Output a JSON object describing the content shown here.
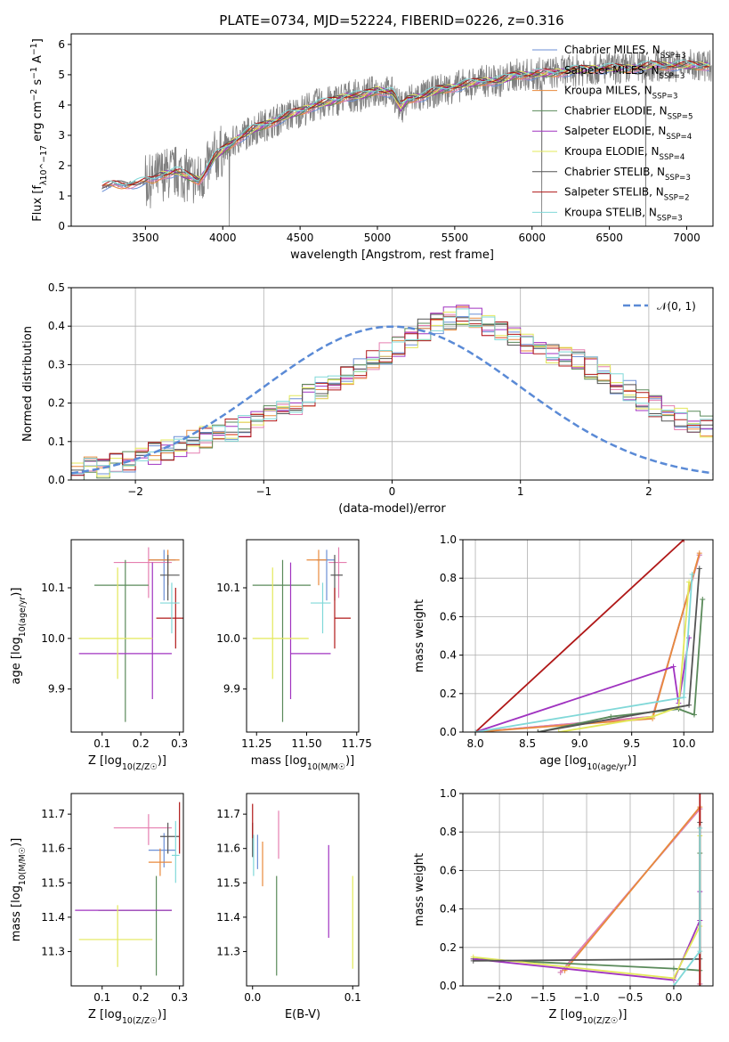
{
  "figure_title": "PLATE=0734, MJD=52224, FIBERID=0226, z=0.316",
  "colors": {
    "Chabrier MILES": "#6b8fd6",
    "Salpeter MILES": "#e57fb0",
    "Kroupa MILES": "#e88a3c",
    "Chabrier ELODIE": "#5a8a5a",
    "Salpeter ELODIE": "#a033c0",
    "Kroupa ELODIE": "#e3e85a",
    "Chabrier STELIB": "#555555",
    "Salpeter STELIB": "#b01818",
    "Kroupa STELIB": "#80d8d8",
    "spectrum": "#808080",
    "gauss": "#5a8ad6",
    "grid": "#b0b0b0"
  },
  "chart_data": [
    {
      "id": "spectrum",
      "type": "line",
      "title": "PLATE=0734, MJD=52224, FIBERID=0226, z=0.316",
      "xlabel": "wavelength [Angstrom, rest frame]",
      "ylabel": "Flux [f_λ 10^-17 erg cm^-2 s^-1 A^-1]",
      "xlim": [
        3020,
        7170
      ],
      "ylim": [
        0,
        6.35
      ],
      "xticks": [
        "3500",
        "4000",
        "4500",
        "5000",
        "5500",
        "6000",
        "6500",
        "7000"
      ],
      "yticks": [
        "0",
        "1",
        "2",
        "3",
        "4",
        "5",
        "6"
      ],
      "grid": false,
      "legend_position": "top-right",
      "legend": [
        {
          "label": "Chabrier MILES, N_SSP=3",
          "series": "Chabrier MILES"
        },
        {
          "label": "Salpeter MILES, N_SSP=3",
          "series": "Salpeter MILES"
        },
        {
          "label": "Kroupa MILES, N_SSP=3",
          "series": "Kroupa MILES"
        },
        {
          "label": "Chabrier ELODIE, N_SSP=5",
          "series": "Chabrier ELODIE"
        },
        {
          "label": "Salpeter ELODIE, N_SSP=4",
          "series": "Salpeter ELODIE"
        },
        {
          "label": "Kroupa ELODIE, N_SSP=4",
          "series": "Kroupa ELODIE"
        },
        {
          "label": "Chabrier STELIB, N_SSP=3",
          "series": "Chabrier STELIB"
        },
        {
          "label": "Salpeter STELIB, N_SSP=2",
          "series": "Salpeter STELIB"
        },
        {
          "label": "Kroupa STELIB, N_SSP=3",
          "series": "Kroupa STELIB"
        }
      ],
      "continuum": {
        "x": [
          3220,
          3300,
          3400,
          3500,
          3550,
          3600,
          3700,
          3800,
          3850,
          3900,
          3950,
          4000,
          4100,
          4200,
          4300,
          4400,
          4500,
          4600,
          4700,
          4800,
          4900,
          5000,
          5100,
          5150,
          5200,
          5300,
          5400,
          5500,
          5600,
          5700,
          5800,
          5900,
          6000,
          6200,
          6400,
          6600,
          6800,
          7000,
          7150
        ],
        "y": [
          1.3,
          1.35,
          1.4,
          1.45,
          1.5,
          1.7,
          1.8,
          1.6,
          1.5,
          1.9,
          2.3,
          2.5,
          2.9,
          3.2,
          3.4,
          3.6,
          3.8,
          4.0,
          4.1,
          4.3,
          4.3,
          4.5,
          4.4,
          3.9,
          4.2,
          4.3,
          4.5,
          4.6,
          4.7,
          4.8,
          4.8,
          5.0,
          5.0,
          5.1,
          5.2,
          5.2,
          5.3,
          5.3,
          5.3
        ]
      }
    },
    {
      "id": "residuals",
      "type": "line",
      "xlabel": "(data-model)/error",
      "ylabel": "Normed distribution",
      "xlim": [
        -2.5,
        2.5
      ],
      "ylim": [
        0,
        0.5
      ],
      "xticks": [
        "−2",
        "−1",
        "0",
        "1",
        "2"
      ],
      "yticks": [
        "0.0",
        "0.1",
        "0.2",
        "0.3",
        "0.4",
        "0.5"
      ],
      "grid": true,
      "legend_position": "top-right",
      "legend": [
        {
          "label": "𝒩(0, 1)",
          "series": "gauss"
        }
      ],
      "bin_width": 0.1,
      "bins_start": -2.5,
      "base_hist": [
        0.02,
        0.03,
        0.03,
        0.04,
        0.05,
        0.06,
        0.07,
        0.08,
        0.09,
        0.1,
        0.11,
        0.12,
        0.13,
        0.14,
        0.16,
        0.17,
        0.18,
        0.2,
        0.22,
        0.24,
        0.26,
        0.27,
        0.29,
        0.31,
        0.33,
        0.35,
        0.37,
        0.39,
        0.41,
        0.42,
        0.43,
        0.42,
        0.4,
        0.39,
        0.37,
        0.35,
        0.34,
        0.33,
        0.32,
        0.31,
        0.29,
        0.27,
        0.25,
        0.23,
        0.21,
        0.19,
        0.17,
        0.16,
        0.15,
        0.14,
        0.12,
        0.11,
        0.1,
        0.09,
        0.08,
        0.07,
        0.06,
        0.05,
        0.05,
        0.04,
        0.04,
        0.03,
        0.03,
        0.03,
        0.02,
        0.02,
        0.02,
        0.02,
        0.02,
        0.02
      ]
    },
    {
      "id": "age-vs-Z",
      "type": "scatter",
      "xlabel": "Z [log10(Z/Z☉)]",
      "ylabel": "age [log10(age/yr)]",
      "xlim": [
        0.02,
        0.31
      ],
      "ylim": [
        9.815,
        10.195
      ],
      "xticks": [
        "0.1",
        "0.2",
        "0.3"
      ],
      "yticks": [
        "9.9",
        "10.0",
        "10.1"
      ],
      "points": [
        {
          "series": "Chabrier MILES",
          "x": 0.26,
          "y": 10.155,
          "xerr": [
            0.04,
            0.03
          ],
          "yerr": [
            0.08,
            0.02
          ]
        },
        {
          "series": "Salpeter MILES",
          "x": 0.22,
          "y": 10.15,
          "xerr": [
            0.09,
            0.06
          ],
          "yerr": [
            0.07,
            0.03
          ]
        },
        {
          "series": "Kroupa MILES",
          "x": 0.27,
          "y": 10.155,
          "xerr": [
            0.05,
            0.03
          ],
          "yerr": [
            0.05,
            0.02
          ]
        },
        {
          "series": "Chabrier ELODIE",
          "x": 0.16,
          "y": 10.105,
          "xerr": [
            0.08,
            0.06
          ],
          "yerr": [
            0.27,
            0.05
          ]
        },
        {
          "series": "Salpeter ELODIE",
          "x": 0.23,
          "y": 9.97,
          "xerr": [
            0.19,
            0.05
          ],
          "yerr": [
            0.09,
            0.18
          ]
        },
        {
          "series": "Kroupa ELODIE",
          "x": 0.14,
          "y": 10.0,
          "xerr": [
            0.1,
            0.09
          ],
          "yerr": [
            0.08,
            0.14
          ]
        },
        {
          "series": "Chabrier STELIB",
          "x": 0.27,
          "y": 10.125,
          "xerr": [
            0.02,
            0.03
          ],
          "yerr": [
            0.05,
            0.04
          ]
        },
        {
          "series": "Salpeter STELIB",
          "x": 0.29,
          "y": 10.04,
          "xerr": [
            0.05,
            0.03
          ],
          "yerr": [
            0.06,
            0.06
          ]
        },
        {
          "series": "Kroupa STELIB",
          "x": 0.28,
          "y": 10.07,
          "xerr": [
            0.03,
            0.02
          ],
          "yerr": [
            0.06,
            0.04
          ]
        }
      ]
    },
    {
      "id": "age-vs-mass",
      "type": "scatter",
      "xlabel": "mass [log10(M/M☉)]",
      "ylabel": "",
      "xlim": [
        11.2,
        11.76
      ],
      "ylim": [
        9.815,
        10.195
      ],
      "xticks": [
        "11.25",
        "11.50",
        "11.75"
      ],
      "yticks": [
        "9.9",
        "10.0",
        "10.1"
      ],
      "points": [
        {
          "series": "Chabrier MILES",
          "x": 11.6,
          "y": 10.155,
          "xerr": [
            0.05,
            0.04
          ],
          "yerr": [
            0.08,
            0.02
          ]
        },
        {
          "series": "Salpeter MILES",
          "x": 11.66,
          "y": 10.15,
          "xerr": [
            0.05,
            0.04
          ],
          "yerr": [
            0.07,
            0.03
          ]
        },
        {
          "series": "Kroupa MILES",
          "x": 11.56,
          "y": 10.155,
          "xerr": [
            0.06,
            0.04
          ],
          "yerr": [
            0.05,
            0.02
          ]
        },
        {
          "series": "Chabrier ELODIE",
          "x": 11.38,
          "y": 10.105,
          "xerr": [
            0.15,
            0.14
          ],
          "yerr": [
            0.27,
            0.05
          ]
        },
        {
          "series": "Salpeter ELODIE",
          "x": 11.42,
          "y": 9.97,
          "xerr": [
            0.0,
            0.2
          ],
          "yerr": [
            0.09,
            0.18
          ]
        },
        {
          "series": "Kroupa ELODIE",
          "x": 11.33,
          "y": 10.0,
          "xerr": [
            0.1,
            0.18
          ],
          "yerr": [
            0.08,
            0.14
          ]
        },
        {
          "series": "Chabrier STELIB",
          "x": 11.64,
          "y": 10.125,
          "xerr": [
            0.02,
            0.04
          ],
          "yerr": [
            0.05,
            0.04
          ]
        },
        {
          "series": "Salpeter STELIB",
          "x": 11.64,
          "y": 10.04,
          "xerr": [
            0.0,
            0.08
          ],
          "yerr": [
            0.06,
            0.06
          ]
        },
        {
          "series": "Kroupa STELIB",
          "x": 11.58,
          "y": 10.07,
          "xerr": [
            0.06,
            0.04
          ],
          "yerr": [
            0.06,
            0.04
          ]
        }
      ]
    },
    {
      "id": "weight-vs-age",
      "type": "line",
      "xlabel": "age [log10(age/yr)]",
      "ylabel": "mass weight",
      "xlim": [
        7.88,
        10.28
      ],
      "ylim": [
        0,
        1.0
      ],
      "xticks": [
        "8.0",
        "8.5",
        "9.0",
        "9.5",
        "10.0"
      ],
      "yticks": [
        "0.0",
        "0.2",
        "0.4",
        "0.6",
        "0.8",
        "1.0"
      ],
      "grid": true,
      "series": [
        {
          "name": "Chabrier MILES",
          "x": [
            8.0,
            9.7,
            10.15
          ],
          "y": [
            0.0,
            0.08,
            0.92
          ]
        },
        {
          "name": "Salpeter MILES",
          "x": [
            8.0,
            9.7,
            10.15
          ],
          "y": [
            0.0,
            0.08,
            0.92
          ]
        },
        {
          "name": "Kroupa MILES",
          "x": [
            8.0,
            9.7,
            10.15
          ],
          "y": [
            0.0,
            0.07,
            0.93
          ]
        },
        {
          "name": "Chabrier ELODIE",
          "x": [
            8.6,
            9.3,
            9.95,
            10.1,
            10.18
          ],
          "y": [
            0.0,
            0.08,
            0.12,
            0.09,
            0.69
          ]
        },
        {
          "name": "Salpeter ELODIE",
          "x": [
            8.0,
            9.9,
            9.95,
            10.05
          ],
          "y": [
            0.0,
            0.34,
            0.15,
            0.49
          ]
        },
        {
          "name": "Kroupa ELODIE",
          "x": [
            8.8,
            9.7,
            9.95,
            10.05
          ],
          "y": [
            0.0,
            0.08,
            0.13,
            0.78
          ]
        },
        {
          "name": "Chabrier STELIB",
          "x": [
            8.6,
            10.05,
            10.15
          ],
          "y": [
            0.0,
            0.14,
            0.85
          ]
        },
        {
          "name": "Salpeter STELIB",
          "x": [
            8.0,
            10.0
          ],
          "y": [
            0.0,
            1.0
          ]
        },
        {
          "name": "Kroupa STELIB",
          "x": [
            8.0,
            10.0,
            10.08
          ],
          "y": [
            0.0,
            0.18,
            0.82
          ]
        }
      ]
    },
    {
      "id": "mass-vs-Z",
      "type": "scatter",
      "xlabel": "Z [log10(Z/Z☉)]",
      "ylabel": "mass [log10(M/M☉)]",
      "xlim": [
        0.02,
        0.31
      ],
      "ylim": [
        11.2,
        11.76
      ],
      "xticks": [
        "0.1",
        "0.2",
        "0.3"
      ],
      "yticks": [
        "11.3",
        "11.4",
        "11.5",
        "11.6",
        "11.7"
      ],
      "points": [
        {
          "series": "Chabrier MILES",
          "x": 0.26,
          "y": 11.595,
          "xerr": [
            0.04,
            0.03
          ],
          "yerr": [
            0.05,
            0.05
          ]
        },
        {
          "series": "Salpeter MILES",
          "x": 0.22,
          "y": 11.66,
          "xerr": [
            0.09,
            0.06
          ],
          "yerr": [
            0.05,
            0.04
          ]
        },
        {
          "series": "Kroupa MILES",
          "x": 0.25,
          "y": 11.56,
          "xerr": [
            0.03,
            0.03
          ],
          "yerr": [
            0.04,
            0.04
          ]
        },
        {
          "series": "Chabrier ELODIE",
          "x": 0.24,
          "y": 11.42,
          "xerr": [
            0.15,
            0.04
          ],
          "yerr": [
            0.19,
            0.1
          ]
        },
        {
          "series": "Salpeter ELODIE",
          "x": 0.13,
          "y": 11.42,
          "xerr": [
            0.1,
            0.15
          ],
          "yerr": [
            0.0,
            0.0
          ]
        },
        {
          "series": "Kroupa ELODIE",
          "x": 0.14,
          "y": 11.335,
          "xerr": [
            0.1,
            0.09
          ],
          "yerr": [
            0.08,
            0.1
          ]
        },
        {
          "series": "Chabrier STELIB",
          "x": 0.27,
          "y": 11.635,
          "xerr": [
            0.02,
            0.03
          ],
          "yerr": [
            0.05,
            0.04
          ]
        },
        {
          "series": "Salpeter STELIB",
          "x": 0.3,
          "y": 11.635,
          "xerr": [
            0.0,
            0.0
          ],
          "yerr": [
            0.05,
            0.1
          ]
        },
        {
          "series": "Kroupa STELIB",
          "x": 0.29,
          "y": 11.58,
          "xerr": [
            0.01,
            0.01
          ],
          "yerr": [
            0.08,
            0.1
          ]
        }
      ]
    },
    {
      "id": "mass-vs-EBV",
      "type": "scatter",
      "xlabel": "E(B-V)",
      "ylabel": "",
      "xlim": [
        -0.006,
        0.106
      ],
      "ylim": [
        11.2,
        11.76
      ],
      "xticks": [
        "0.0",
        "0.1"
      ],
      "yticks": [
        "11.3",
        "11.4",
        "11.5",
        "11.6",
        "11.7"
      ],
      "points": [
        {
          "series": "Chabrier MILES",
          "x": 0.005,
          "y": 11.59,
          "yerr": [
            0.05,
            0.05
          ]
        },
        {
          "series": "Salpeter MILES",
          "x": 0.026,
          "y": 11.66,
          "yerr": [
            0.09,
            0.05
          ]
        },
        {
          "series": "Kroupa MILES",
          "x": 0.01,
          "y": 11.56,
          "yerr": [
            0.07,
            0.06
          ]
        },
        {
          "series": "Chabrier ELODIE",
          "x": 0.024,
          "y": 11.42,
          "yerr": [
            0.19,
            0.1
          ]
        },
        {
          "series": "Salpeter ELODIE",
          "x": 0.076,
          "y": 11.47,
          "yerr": [
            0.13,
            0.14
          ]
        },
        {
          "series": "Kroupa ELODIE",
          "x": 0.1,
          "y": 11.38,
          "yerr": [
            0.13,
            0.14
          ]
        },
        {
          "series": "Chabrier STELIB",
          "x": 0.0,
          "y": 11.635,
          "yerr": [
            0.06,
            0.04
          ]
        },
        {
          "series": "Salpeter STELIB",
          "x": 0.0,
          "y": 11.69,
          "yerr": [
            0.06,
            0.04
          ]
        },
        {
          "series": "Kroupa STELIB",
          "x": 0.001,
          "y": 11.58,
          "yerr": [
            0.06,
            0.06
          ]
        }
      ]
    },
    {
      "id": "weight-vs-Z",
      "type": "line",
      "xlabel": "Z [log10(Z/Z☉)]",
      "ylabel": "mass weight",
      "xlim": [
        -2.42,
        0.45
      ],
      "ylim": [
        0,
        1.0
      ],
      "xticks": [
        "−2.0",
        "−1.5",
        "−1.0",
        "−0.5",
        "0.0"
      ],
      "yticks": [
        "0.0",
        "0.2",
        "0.4",
        "0.6",
        "0.8",
        "1.0"
      ],
      "grid": true,
      "series": [
        {
          "name": "Chabrier MILES",
          "x": [
            -1.3,
            0.3,
            0.3
          ],
          "y": [
            0.07,
            0.92,
            0.01
          ]
        },
        {
          "name": "Salpeter MILES",
          "x": [
            -1.3,
            0.3,
            0.3
          ],
          "y": [
            0.07,
            0.92,
            0.01
          ]
        },
        {
          "name": "Kroupa MILES",
          "x": [
            -1.25,
            0.3,
            0.3
          ],
          "y": [
            0.08,
            0.93,
            0.0
          ]
        },
        {
          "name": "Chabrier ELODIE",
          "x": [
            -2.3,
            0.0,
            0.3,
            0.3
          ],
          "y": [
            0.14,
            0.09,
            0.08,
            0.69
          ]
        },
        {
          "name": "Salpeter ELODIE",
          "x": [
            -2.3,
            0.0,
            0.3,
            0.3
          ],
          "y": [
            0.14,
            0.03,
            0.34,
            0.49
          ]
        },
        {
          "name": "Kroupa ELODIE",
          "x": [
            -2.3,
            0.0,
            0.3,
            0.3
          ],
          "y": [
            0.15,
            0.04,
            0.31,
            0.78
          ]
        },
        {
          "name": "Chabrier STELIB",
          "x": [
            -2.3,
            0.3,
            0.3,
            0.3
          ],
          "y": [
            0.13,
            0.14,
            0.85,
            0.0
          ]
        },
        {
          "name": "Salpeter STELIB",
          "x": [
            0.3,
            0.3
          ],
          "y": [
            0.0,
            1.0
          ]
        },
        {
          "name": "Kroupa STELIB",
          "x": [
            0.0,
            0.3,
            0.3
          ],
          "y": [
            0.0,
            0.18,
            0.82
          ]
        }
      ]
    }
  ]
}
